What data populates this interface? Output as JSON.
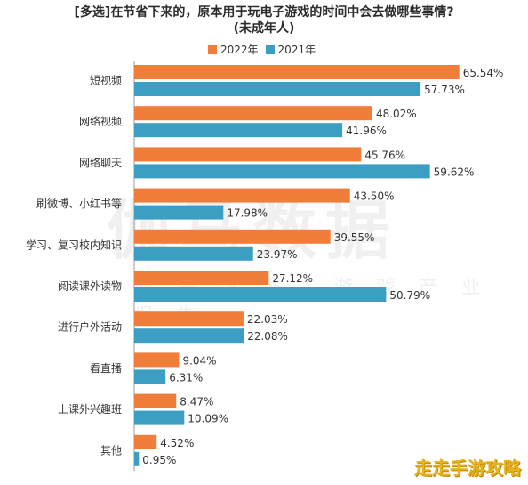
{
  "colors": {
    "y2022": "#f07d3a",
    "y2021": "#3d9ec4"
  },
  "watermark": {
    "main": "伽马数据",
    "sub": "伽马数据 游戏产业报告"
  },
  "corner_logo": "走走手游攻略",
  "chart_data": {
    "type": "bar",
    "orientation": "horizontal",
    "title": "[多选]在节省下来的，原本用于玩电子游戏的时间中会去做哪些事情?",
    "subtitle": "(未成年人)",
    "categories": [
      "短视频",
      "网络视频",
      "网络聊天",
      "刷微博、小红书等",
      "学习、复习校内知识",
      "阅读课外读物",
      "进行户外活动",
      "看直播",
      "上课外兴趣班",
      "其他"
    ],
    "series": [
      {
        "name": "2022年",
        "values": [
          65.54,
          48.02,
          45.76,
          43.5,
          39.55,
          27.12,
          22.03,
          9.04,
          8.47,
          4.52
        ]
      },
      {
        "name": "2021年",
        "values": [
          57.73,
          41.96,
          59.62,
          17.98,
          23.97,
          50.79,
          22.08,
          6.31,
          10.09,
          0.95
        ]
      }
    ],
    "value_labels": [
      [
        "65.54%",
        "48.02%",
        "45.76%",
        "43.50%",
        "39.55%",
        "27.12%",
        "22.03%",
        "9.04%",
        "8.47%",
        "4.52%"
      ],
      [
        "57.73%",
        "41.96%",
        "59.62%",
        "17.98%",
        "23.97%",
        "50.79%",
        "22.08%",
        "6.31%",
        "10.09%",
        "0.95%"
      ]
    ],
    "legend_position": "top",
    "grid": false
  }
}
